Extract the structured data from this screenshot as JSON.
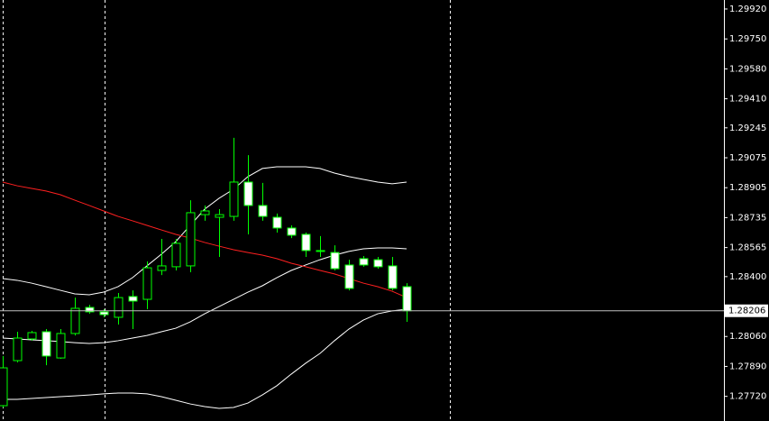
{
  "chart_data": {
    "type": "candlestick",
    "background": "#000000",
    "up_color": "#00ff00",
    "down_fill": "#ffffff",
    "grid": false,
    "categories": [
      null,
      null,
      null,
      null,
      null,
      null,
      null,
      null,
      null,
      null,
      null,
      null,
      null,
      null,
      null,
      null,
      null,
      null,
      null,
      null,
      null,
      null,
      null,
      null,
      null,
      null,
      null,
      null,
      null
    ],
    "open": [
      1.27667,
      1.27923,
      1.28046,
      1.28087,
      1.27938,
      1.28077,
      1.28225,
      1.282,
      1.28169,
      1.28287,
      1.28271,
      1.28435,
      1.28456,
      1.28461,
      1.28752,
      1.28737,
      1.28742,
      1.28937,
      1.28804,
      1.28737,
      1.28676,
      1.2864,
      1.28548,
      1.28537,
      1.28466,
      1.28502,
      1.28496,
      1.28461,
      1.28343
    ],
    "high": [
      1.27949,
      1.28087,
      1.28092,
      1.28102,
      1.28102,
      1.28281,
      1.2824,
      1.28215,
      1.28307,
      1.28322,
      1.28486,
      1.28614,
      1.28614,
      1.28834,
      1.28804,
      1.28783,
      1.29188,
      1.2909,
      1.28932,
      1.28758,
      1.28691,
      1.2865,
      1.2863,
      1.28578,
      1.28496,
      1.28517,
      1.28512,
      1.28512,
      1.28363
    ],
    "low": [
      1.27657,
      1.27913,
      1.28036,
      1.27897,
      1.27933,
      1.28066,
      1.28189,
      1.28169,
      1.28128,
      1.28102,
      1.28215,
      1.28409,
      1.28435,
      1.28425,
      1.28717,
      1.28512,
      1.28717,
      1.2864,
      1.28717,
      1.2865,
      1.28619,
      1.28512,
      1.28512,
      1.28435,
      1.28322,
      1.28456,
      1.28445,
      1.28322,
      1.28143
    ],
    "close": [
      1.27882,
      1.28051,
      1.28082,
      1.27949,
      1.28077,
      1.2822,
      1.282,
      1.28184,
      1.28281,
      1.28261,
      1.2845,
      1.28461,
      1.28589,
      1.28763,
      1.28773,
      1.28752,
      1.28937,
      1.28804,
      1.28742,
      1.28676,
      1.28635,
      1.28548,
      1.28543,
      1.28445,
      1.28333,
      1.28466,
      1.28456,
      1.28333,
      1.28206
    ],
    "series": [
      {
        "color": "#ffffff",
        "values": [
          1.28389,
          1.28379,
          1.28363,
          1.28343,
          1.28322,
          1.28302,
          1.28297,
          1.28312,
          1.28343,
          1.28394,
          1.28461,
          1.28527,
          1.28599,
          1.28691,
          1.28783,
          1.28845,
          1.28896,
          1.28968,
          1.29014,
          1.29024,
          1.29024,
          1.29024,
          1.29014,
          1.28988,
          1.28968,
          1.28952,
          1.28937,
          1.28927,
          1.28937
        ]
      },
      {
        "color": "#ffffff",
        "values": [
          1.28051,
          1.28046,
          1.28041,
          1.28036,
          1.28031,
          1.28025,
          1.2802,
          1.28025,
          1.28036,
          1.28051,
          1.28066,
          1.28087,
          1.28107,
          1.28143,
          1.28189,
          1.2823,
          1.28271,
          1.28312,
          1.28348,
          1.28394,
          1.28435,
          1.28466,
          1.28496,
          1.28522,
          1.28543,
          1.28558,
          1.28563,
          1.28563,
          1.28558
        ]
      },
      {
        "color": "#ffffff",
        "values": [
          1.27703,
          1.27703,
          1.27708,
          1.27713,
          1.27718,
          1.27723,
          1.27728,
          1.27734,
          1.27739,
          1.27739,
          1.27734,
          1.27718,
          1.27698,
          1.27677,
          1.27662,
          1.27652,
          1.27657,
          1.27682,
          1.27728,
          1.2778,
          1.27846,
          1.27908,
          1.27964,
          1.28036,
          1.28102,
          1.28153,
          1.28189,
          1.28205,
          1.28215
        ]
      },
      {
        "color": "#ff2020",
        "values": [
          1.28937,
          1.28916,
          1.28901,
          1.28886,
          1.28865,
          1.28834,
          1.28804,
          1.28773,
          1.28742,
          1.28717,
          1.28691,
          1.28665,
          1.2864,
          1.28619,
          1.28594,
          1.28573,
          1.28553,
          1.28537,
          1.28522,
          1.28502,
          1.28476,
          1.28456,
          1.28435,
          1.28415,
          1.28389,
          1.28363,
          1.28343,
          1.28317,
          1.28281
        ]
      }
    ],
    "current_price": {
      "value": 1.28206,
      "label": "1.28206"
    },
    "ylim": [
      1.2758,
      1.29971
    ],
    "yticks": [
      {
        "value": 1.2992,
        "label": "1.29920"
      },
      {
        "value": 1.2975,
        "label": "1.29750"
      },
      {
        "value": 1.2958,
        "label": "1.29580"
      },
      {
        "value": 1.2941,
        "label": "1.29410"
      },
      {
        "value": 1.29245,
        "label": "1.29245"
      },
      {
        "value": 1.29075,
        "label": "1.29075"
      },
      {
        "value": 1.28905,
        "label": "1.28905"
      },
      {
        "value": 1.28735,
        "label": "1.28735"
      },
      {
        "value": 1.28565,
        "label": "1.28565"
      },
      {
        "value": 1.284,
        "label": "1.28400"
      },
      {
        "value": 1.2806,
        "label": "1.28060"
      },
      {
        "value": 1.2789,
        "label": "1.27890"
      },
      {
        "value": 1.2772,
        "label": "1.27720"
      }
    ]
  }
}
